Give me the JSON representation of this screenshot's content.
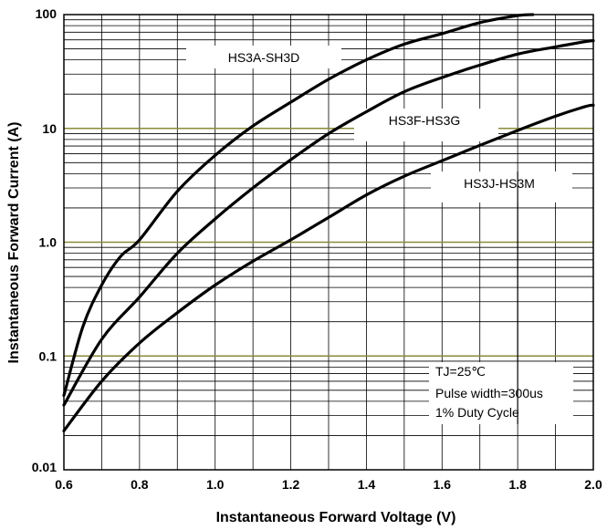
{
  "chart_data": {
    "type": "line",
    "xlabel": "Instantaneous Forward Voltage (V)",
    "ylabel": "Instantaneous Forward Current (A)",
    "xlim": [
      0.6,
      2.0
    ],
    "ylim": [
      0.01,
      100
    ],
    "yscale": "log",
    "grid": true,
    "x_ticks": [
      0.6,
      0.8,
      1.0,
      1.2,
      1.4,
      1.6,
      1.8,
      2.0
    ],
    "x_tick_labels": [
      "0.6",
      "0.8",
      "1.0",
      "1.2",
      "1.4",
      "1.6",
      "1.8",
      "2.0"
    ],
    "y_ticks": [
      0.01,
      0.1,
      1,
      10,
      100
    ],
    "y_tick_labels": [
      "0.01",
      "0.1",
      "1.0",
      "10",
      "100"
    ],
    "series": [
      {
        "name": "HS3A-SH3D",
        "x": [
          0.6,
          0.65,
          0.7,
          0.75,
          0.8,
          0.9,
          1.0,
          1.1,
          1.2,
          1.3,
          1.4,
          1.5,
          1.6,
          1.7,
          1.8,
          1.84
        ],
        "y": [
          0.045,
          0.18,
          0.42,
          0.75,
          1.05,
          2.8,
          5.8,
          10.5,
          17,
          27,
          40,
          55,
          68,
          85,
          98,
          100
        ]
      },
      {
        "name": "HS3F-HS3G",
        "x": [
          0.6,
          0.7,
          0.8,
          0.9,
          1.0,
          1.1,
          1.2,
          1.3,
          1.4,
          1.5,
          1.6,
          1.7,
          1.8,
          1.9,
          1.98,
          2.0
        ],
        "y": [
          0.037,
          0.14,
          0.33,
          0.8,
          1.6,
          3.0,
          5.3,
          9.0,
          14,
          21,
          28,
          36,
          45,
          52,
          58,
          59
        ]
      },
      {
        "name": "HS3J-HS3M",
        "x": [
          0.6,
          0.7,
          0.8,
          0.9,
          1.0,
          1.1,
          1.2,
          1.3,
          1.4,
          1.5,
          1.6,
          1.7,
          1.8,
          1.9,
          1.98,
          2.0
        ],
        "y": [
          0.022,
          0.06,
          0.13,
          0.24,
          0.42,
          0.68,
          1.05,
          1.65,
          2.6,
          3.8,
          5.2,
          7.1,
          9.6,
          12.8,
          15.6,
          16
        ]
      }
    ],
    "annotations": [
      "TJ=25℃",
      "Pulse width=300us",
      "1% Duty Cycle"
    ],
    "colors": {
      "curve": "#000000",
      "grid": "#000000",
      "highlight_grid": "#8a8a3a"
    }
  }
}
